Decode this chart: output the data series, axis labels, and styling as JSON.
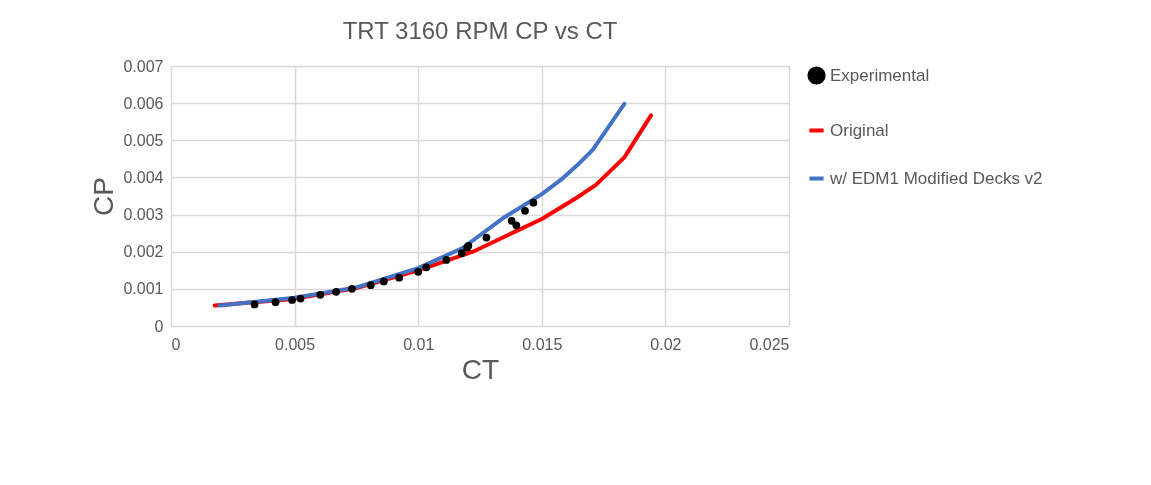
{
  "chart_data": {
    "type": "line",
    "title": "TRT 3160 RPM CP vs CT",
    "xlabel": "CT",
    "ylabel": "CP",
    "xlim": [
      0,
      0.025
    ],
    "xticks": [
      0,
      0.005,
      0.01,
      0.015,
      0.02,
      0.025
    ],
    "ylim": [
      0,
      0.007
    ],
    "yticks": [
      0,
      0.001,
      0.002,
      0.003,
      0.004,
      0.005,
      0.006,
      0.007
    ],
    "grid": true,
    "legend": "right",
    "series": [
      {
        "name": "Experimental",
        "type": "scatter",
        "marker": "circle",
        "color": "#000000",
        "x": [
          0.00338,
          0.00423,
          0.0049,
          0.00524,
          0.00604,
          0.00668,
          0.00732,
          0.00808,
          0.00861,
          0.00923,
          0.01,
          0.01033,
          0.01114,
          0.01176,
          0.01198,
          0.01203,
          0.01276,
          0.01378,
          0.01397,
          0.01432,
          0.01466
        ],
        "values": [
          0.00058,
          0.00064,
          0.0007,
          0.00074,
          0.00084,
          0.00092,
          0.001,
          0.0011,
          0.0012,
          0.0013,
          0.00146,
          0.00158,
          0.00178,
          0.00196,
          0.00211,
          0.00216,
          0.00238,
          0.00283,
          0.00271,
          0.0031,
          0.00332
        ]
      },
      {
        "name": "Original",
        "type": "line",
        "line_style": "solid",
        "color": "#ff0000",
        "x": [
          0.00177,
          0.005,
          0.0075,
          0.01,
          0.01221,
          0.015,
          0.01638,
          0.01719,
          0.01834,
          0.01942
        ],
        "values": [
          0.00055,
          0.00073,
          0.00102,
          0.0015,
          0.002,
          0.00288,
          0.00344,
          0.0038,
          0.00454,
          0.00567
        ]
      },
      {
        "name": "w/ EDM1 Modified Decks v2",
        "type": "line",
        "line_style": "solid",
        "color": "#4472c4",
        "x": [
          0.00197,
          0.005,
          0.0075,
          0.01,
          0.0118,
          0.01342,
          0.015,
          0.01578,
          0.01645,
          0.01706,
          0.01834
        ],
        "values": [
          0.00055,
          0.00076,
          0.00104,
          0.00156,
          0.0021,
          0.0029,
          0.00355,
          0.00394,
          0.00434,
          0.00474,
          0.00598
        ]
      }
    ]
  }
}
